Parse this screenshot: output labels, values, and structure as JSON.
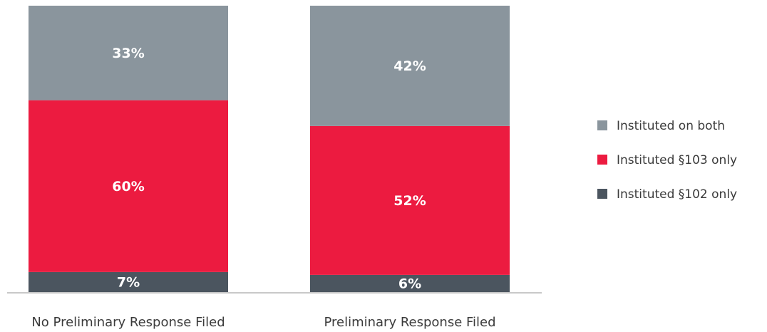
{
  "chart_data": {
    "type": "stacked_bar",
    "categories": [
      "No Preliminary Response Filed",
      "Preliminary Response Filed"
    ],
    "series": [
      {
        "name": "Instituted §102 only",
        "color": "#4b555f",
        "values": [
          7,
          6
        ],
        "value_labels": [
          "7%",
          "6%"
        ]
      },
      {
        "name": "Instituted §103 only",
        "color": "#ec1b40",
        "values": [
          60,
          52
        ],
        "value_labels": [
          "60%",
          "52%"
        ]
      },
      {
        "name": "Instituted on both",
        "color": "#8a959d",
        "values": [
          33,
          42
        ],
        "value_labels": [
          "33%",
          "42%"
        ]
      }
    ],
    "ylim": [
      0,
      100
    ],
    "legend": "right"
  }
}
